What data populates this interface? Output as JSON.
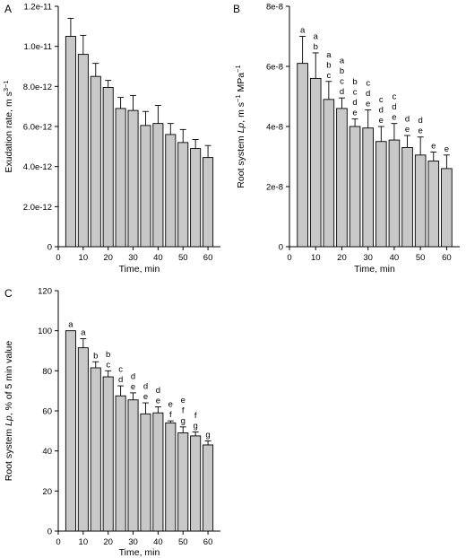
{
  "chart_data": [
    {
      "panel_letter": "A",
      "type": "bar",
      "x": [
        5,
        10,
        15,
        20,
        25,
        30,
        35,
        40,
        45,
        50,
        55,
        60
      ],
      "values": [
        1.05e-11,
        9.6e-12,
        8.5e-12,
        7.95e-12,
        6.9e-12,
        6.8e-12,
        6.05e-12,
        6.15e-12,
        5.6e-12,
        5.2e-12,
        4.9e-12,
        4.45e-12
      ],
      "errors": [
        9e-13,
        9.5e-13,
        6.5e-13,
        3.5e-13,
        5.5e-13,
        7.5e-13,
        7e-13,
        9e-13,
        5.5e-13,
        6.5e-13,
        4.5e-13,
        6e-13
      ],
      "xlim": [
        0,
        65
      ],
      "ylim": [
        0,
        1.2e-11
      ],
      "xticks": [
        0,
        10,
        20,
        30,
        40,
        50,
        60
      ],
      "yticks": [
        0,
        2e-12,
        4e-12,
        6e-12,
        8e-12,
        1e-11,
        1.2e-11
      ],
      "ytick_labels": [
        "0",
        "2.0e-12",
        "4.0e-12",
        "6.0e-12",
        "8.0e-12",
        "1.0e-11",
        "1.2e-11"
      ],
      "xlabel": "Time, min",
      "ylabel_main": "Exudation rate, m",
      "ylabel_sup1": "3",
      "ylabel_mid": " s",
      "ylabel_sup2": "−1",
      "letters": [],
      "bar_color": "#c8c8c8"
    },
    {
      "panel_letter": "B",
      "type": "bar",
      "x": [
        5,
        10,
        15,
        20,
        25,
        30,
        35,
        40,
        45,
        50,
        55,
        60
      ],
      "values": [
        6.1e-08,
        5.6e-08,
        4.9e-08,
        4.6e-08,
        4e-08,
        3.95e-08,
        3.5e-08,
        3.55e-08,
        3.3e-08,
        3.05e-08,
        2.85e-08,
        2.6e-08
      ],
      "errors": [
        9e-09,
        8.5e-09,
        6e-09,
        3.5e-09,
        2.5e-09,
        6e-09,
        5e-09,
        5.5e-09,
        4e-09,
        6e-09,
        3e-09,
        4.5e-09
      ],
      "xlim": [
        0,
        65
      ],
      "ylim": [
        0,
        8e-08
      ],
      "xticks": [
        0,
        10,
        20,
        30,
        40,
        50,
        60
      ],
      "yticks": [
        0,
        2e-08,
        4e-08,
        6e-08,
        8e-08
      ],
      "ytick_labels": [
        "0",
        "2e-8",
        "4e-8",
        "6e-8",
        "8e-8"
      ],
      "xlabel": "Time, min",
      "ylabel_main": "Root system ",
      "ylabel_italic": "Lp",
      "ylabel_mid": ", m s",
      "ylabel_sup1": "−1",
      "ylabel_mid2": " MPa",
      "ylabel_sup2": "−1",
      "letters": [
        [
          "a"
        ],
        [
          "a",
          "b"
        ],
        [
          "a",
          "b",
          "c"
        ],
        [
          "a",
          "b",
          "c",
          "d"
        ],
        [
          "b",
          "c",
          "d",
          "e"
        ],
        [
          "c",
          "d",
          "e"
        ],
        [
          "c",
          "d",
          "e"
        ],
        [
          "c",
          "d",
          "e"
        ],
        [
          "d",
          "e"
        ],
        [
          "d",
          "e"
        ],
        [
          "e"
        ],
        [
          "e"
        ]
      ],
      "bar_color": "#c8c8c8"
    },
    {
      "panel_letter": "C",
      "type": "bar",
      "x": [
        5,
        10,
        15,
        20,
        25,
        30,
        35,
        40,
        45,
        50,
        55,
        60
      ],
      "values": [
        100,
        91.5,
        81.5,
        77,
        67.5,
        65.5,
        58.5,
        59,
        54,
        49,
        47.5,
        43
      ],
      "errors": [
        0,
        4.5,
        3,
        3,
        5,
        3.5,
        5.5,
        3,
        1,
        3,
        2,
        2
      ],
      "xlim": [
        0,
        65
      ],
      "ylim": [
        0,
        120
      ],
      "xticks": [
        0,
        10,
        20,
        30,
        40,
        50,
        60
      ],
      "yticks": [
        0,
        20,
        40,
        60,
        80,
        100,
        120
      ],
      "ytick_labels": [
        "0",
        "20",
        "40",
        "60",
        "80",
        "100",
        "120"
      ],
      "xlabel": "Time, min",
      "ylabel_main": "Root system ",
      "ylabel_italic": "Lp",
      "ylabel_mid": ", % of 5 min value",
      "letters": [
        [
          "a"
        ],
        [
          "a"
        ],
        [
          "b"
        ],
        [
          "b",
          "c"
        ],
        [
          "c",
          "d"
        ],
        [
          "d",
          "e"
        ],
        [
          "d",
          "e"
        ],
        [
          "d",
          "e"
        ],
        [
          "e",
          "f"
        ],
        [
          "e",
          "f",
          "g"
        ],
        [
          "f",
          "g"
        ],
        [
          "g"
        ]
      ],
      "bar_color": "#c8c8c8"
    }
  ]
}
